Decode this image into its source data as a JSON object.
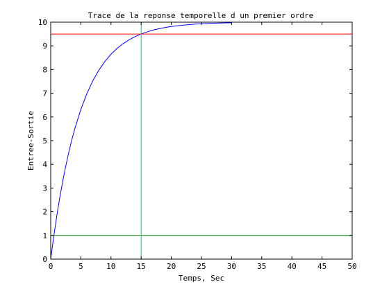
{
  "chart_data": {
    "type": "line",
    "title": "Trace de la reponse temporelle d un premier ordre",
    "xlabel": "Temps, Sec",
    "ylabel": "Entree-Sortie",
    "xlim": [
      0,
      50
    ],
    "ylim": [
      0,
      10
    ],
    "xticks": [
      0,
      5,
      10,
      15,
      20,
      25,
      30,
      35,
      40,
      45,
      50
    ],
    "yticks": [
      0,
      1,
      2,
      3,
      4,
      5,
      6,
      7,
      8,
      9,
      10
    ],
    "grid": false,
    "legend": "none",
    "series": [
      {
        "color": "#0000ff",
        "x": [
          0,
          0.5,
          1,
          1.5,
          2,
          2.5,
          3,
          3.5,
          4,
          5,
          6,
          7,
          8,
          9,
          10,
          11,
          12,
          13,
          14,
          15,
          16,
          17,
          18,
          19,
          20,
          22,
          24,
          26,
          28,
          30
        ],
        "y": [
          0,
          0.952,
          1.813,
          2.592,
          3.297,
          3.935,
          4.512,
          5.034,
          5.507,
          6.321,
          6.988,
          7.534,
          7.981,
          8.347,
          8.647,
          8.892,
          9.093,
          9.257,
          9.392,
          9.502,
          9.592,
          9.666,
          9.727,
          9.776,
          9.817,
          9.877,
          9.918,
          9.945,
          9.963,
          9.975
        ]
      },
      {
        "color": "#ff0000",
        "x": [
          0,
          50
        ],
        "y": [
          9.5,
          9.5
        ]
      },
      {
        "color": "#008000",
        "x": [
          0,
          50
        ],
        "y": [
          1,
          1
        ]
      },
      {
        "color": "#00bfbf",
        "x": [
          15,
          15
        ],
        "y": [
          0,
          10
        ]
      }
    ]
  }
}
